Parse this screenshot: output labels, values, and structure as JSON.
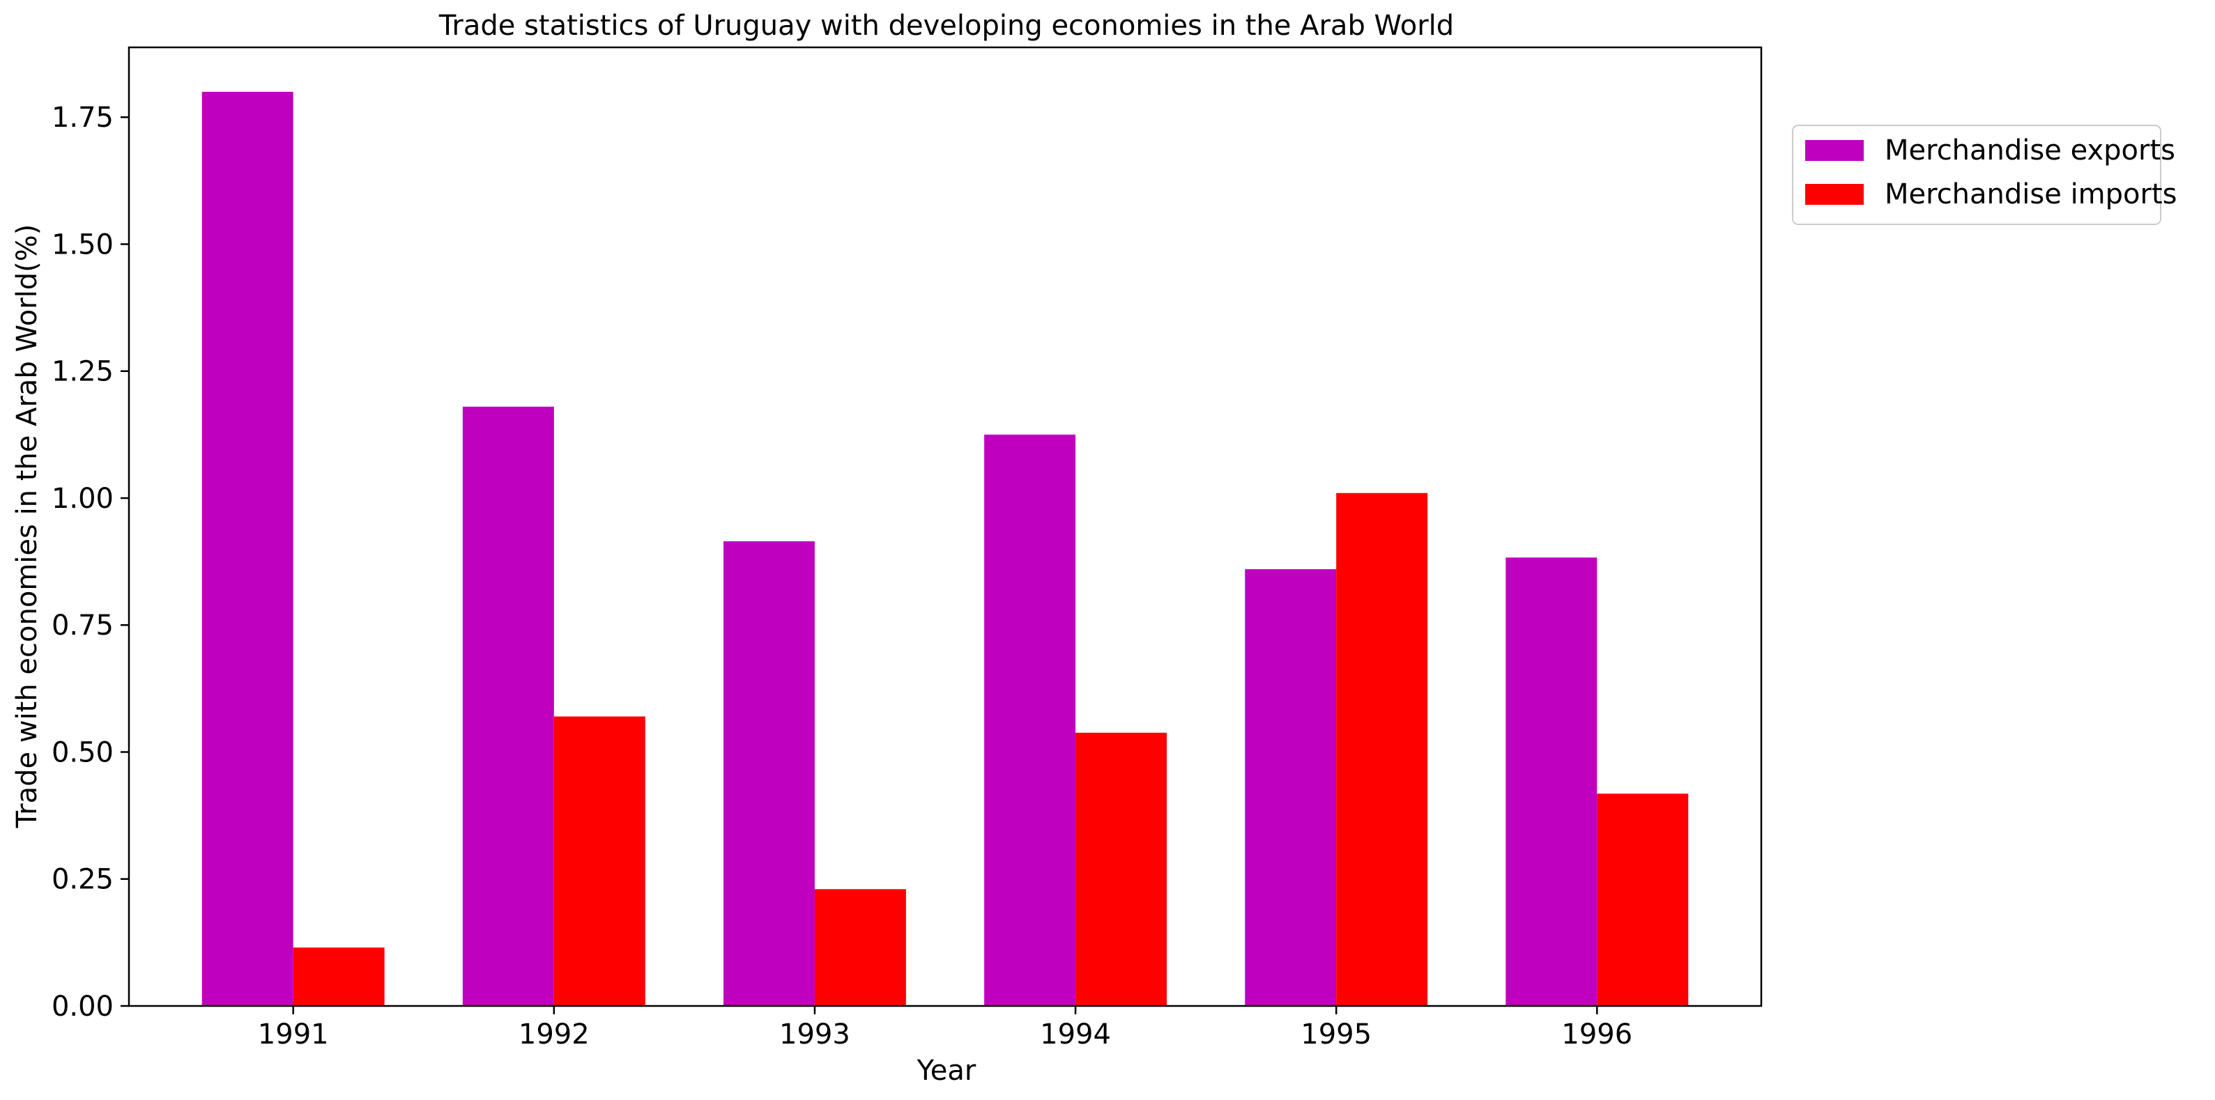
{
  "chart_data": {
    "type": "bar",
    "title": "Trade statistics of Uruguay with developing economies in the Arab World",
    "xlabel": "Year",
    "ylabel": "Trade with economies in the Arab World(%)",
    "categories": [
      "1991",
      "1992",
      "1993",
      "1994",
      "1995",
      "1996"
    ],
    "series": [
      {
        "name": "Merchandise exports",
        "color": "#bf00bf",
        "values": [
          1.8,
          1.18,
          0.915,
          1.125,
          0.86,
          0.883
        ]
      },
      {
        "name": "Merchandise imports",
        "color": "#ff0000",
        "values": [
          0.115,
          0.57,
          0.23,
          0.538,
          1.01,
          0.418
        ]
      }
    ],
    "ylim": [
      0,
      1.8875
    ],
    "yticks": [
      "0.00",
      "0.25",
      "0.50",
      "0.75",
      "1.00",
      "1.25",
      "1.50",
      "1.75"
    ],
    "grid": false,
    "legend_position": "outside-top-right"
  }
}
